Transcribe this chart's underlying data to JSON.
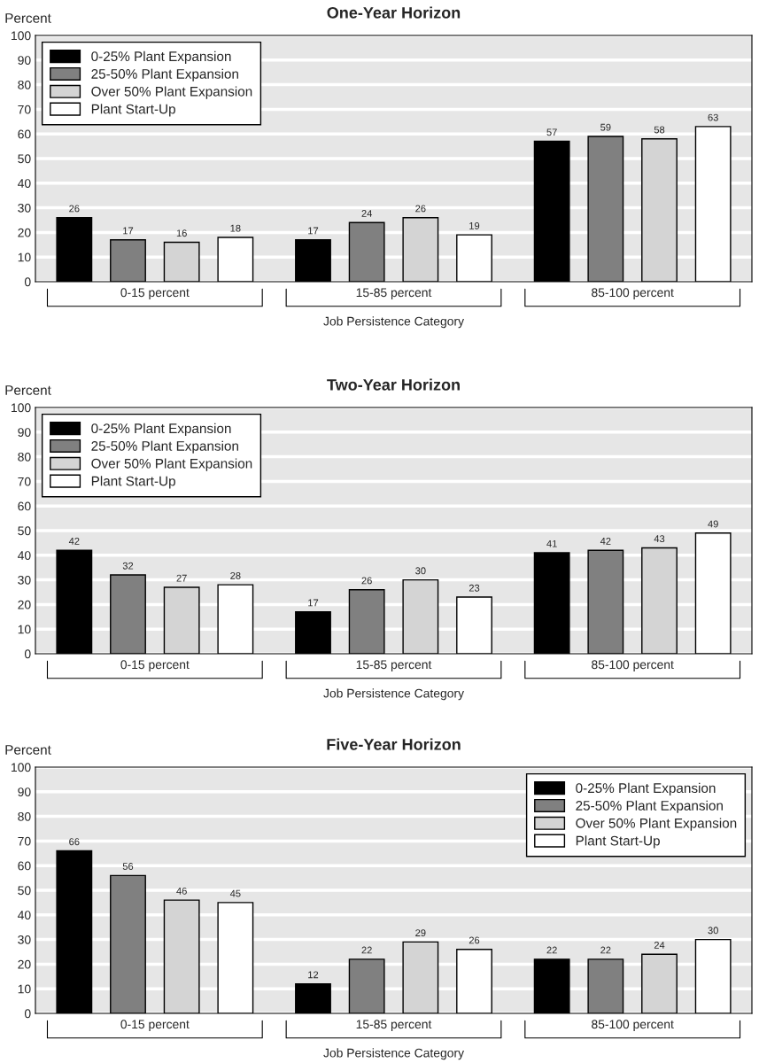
{
  "chart_data": [
    {
      "type": "bar",
      "title": "One-Year Horizon",
      "xlabel": "Job Persistence Category",
      "ylabel": "Percent",
      "categories": [
        "0-15 percent",
        "15-85 percent",
        "85-100 percent"
      ],
      "series": [
        {
          "name": "0-25% Plant Expansion",
          "color": "#000000",
          "values": [
            26,
            17,
            57
          ]
        },
        {
          "name": "25-50% Plant Expansion",
          "color": "#808080",
          "values": [
            17,
            24,
            59
          ]
        },
        {
          "name": "Over 50% Plant Expansion",
          "color": "#d4d4d4",
          "values": [
            16,
            26,
            58
          ]
        },
        {
          "name": "Plant Start-Up",
          "color": "#ffffff",
          "values": [
            18,
            19,
            63
          ]
        }
      ],
      "ylim": [
        0,
        100
      ],
      "yticks": [
        0,
        10,
        20,
        30,
        40,
        50,
        60,
        70,
        80,
        90,
        100
      ],
      "grid": "y",
      "legend": "top left",
      "data_labels": true
    },
    {
      "type": "bar",
      "title": "Two-Year Horizon",
      "xlabel": "Job Persistence Category",
      "ylabel": "Percent",
      "categories": [
        "0-15 percent",
        "15-85 percent",
        "85-100 percent"
      ],
      "series": [
        {
          "name": "0-25% Plant Expansion",
          "color": "#000000",
          "values": [
            42,
            17,
            41
          ]
        },
        {
          "name": "25-50% Plant Expansion",
          "color": "#808080",
          "values": [
            32,
            26,
            42
          ]
        },
        {
          "name": "Over 50% Plant Expansion",
          "color": "#d4d4d4",
          "values": [
            27,
            30,
            43
          ]
        },
        {
          "name": "Plant Start-Up",
          "color": "#ffffff",
          "values": [
            28,
            23,
            49
          ]
        }
      ],
      "ylim": [
        0,
        100
      ],
      "yticks": [
        0,
        10,
        20,
        30,
        40,
        50,
        60,
        70,
        80,
        90,
        100
      ],
      "grid": "y",
      "legend": "top left",
      "data_labels": true
    },
    {
      "type": "bar",
      "title": "Five-Year Horizon",
      "xlabel": "Job Persistence Category",
      "ylabel": "Percent",
      "categories": [
        "0-15 percent",
        "15-85 percent",
        "85-100 percent"
      ],
      "series": [
        {
          "name": "0-25% Plant Expansion",
          "color": "#000000",
          "values": [
            66,
            12,
            22
          ]
        },
        {
          "name": "25-50% Plant Expansion",
          "color": "#808080",
          "values": [
            56,
            22,
            22
          ]
        },
        {
          "name": "Over 50% Plant Expansion",
          "color": "#d4d4d4",
          "values": [
            46,
            29,
            24
          ]
        },
        {
          "name": "Plant Start-Up",
          "color": "#ffffff",
          "values": [
            45,
            26,
            30
          ]
        }
      ],
      "ylim": [
        0,
        100
      ],
      "yticks": [
        0,
        10,
        20,
        30,
        40,
        50,
        60,
        70,
        80,
        90,
        100
      ],
      "grid": "y",
      "legend": "top right",
      "data_labels": true
    }
  ]
}
